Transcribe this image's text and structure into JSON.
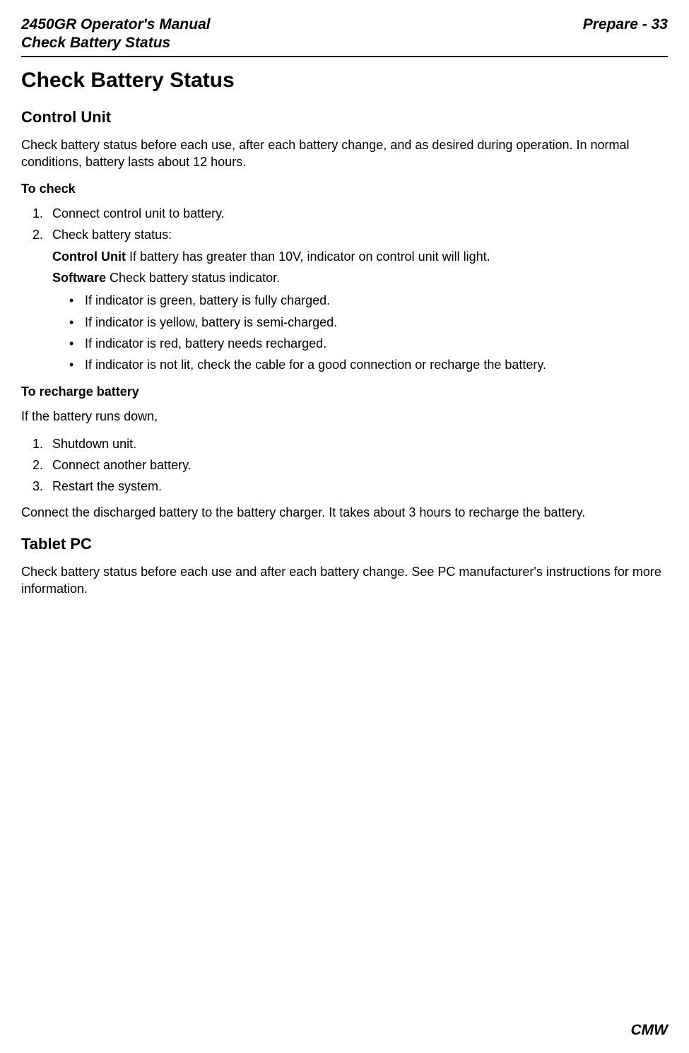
{
  "header": {
    "doc_title": "2450GR Operator's Manual",
    "section_title": "Check Battery Status",
    "page_label": "Prepare - 33"
  },
  "main": {
    "h1": "Check Battery Status",
    "control_unit": {
      "heading": "Control Unit",
      "intro": "Check battery status before each use, after each battery change, and as desired during operation. In normal conditions, battery lasts about 12 hours.",
      "to_check_heading": "To check",
      "step1": "Connect control unit to battery.",
      "step2_lead": "Check battery status:",
      "step2_cu_label": "Control Unit",
      "step2_cu_text": " If battery has greater than 10V, indicator on control unit will light.",
      "step2_sw_label": "Software",
      "step2_sw_text": " Check battery status indicator.",
      "bullets": {
        "b1": "If indicator is green, battery is fully charged.",
        "b2": "If indicator is yellow, battery is semi-charged.",
        "b3": "If indicator is red, battery needs recharged.",
        "b4": "If indicator is not lit, check the cable for a good connection or recharge the battery."
      },
      "to_recharge_heading": "To recharge battery",
      "recharge_intro": "If the battery runs down,",
      "recharge_steps": {
        "s1": "Shutdown unit.",
        "s2": "Connect another battery.",
        "s3": "Restart the system."
      },
      "recharge_note": "Connect the discharged battery to the battery charger. It takes about 3 hours to recharge the battery."
    },
    "tablet_pc": {
      "heading": "Tablet PC",
      "text": "Check battery status before each use and after each battery change. See PC manufacturer's instructions for more information."
    }
  },
  "footer": {
    "brand": "CMW"
  }
}
